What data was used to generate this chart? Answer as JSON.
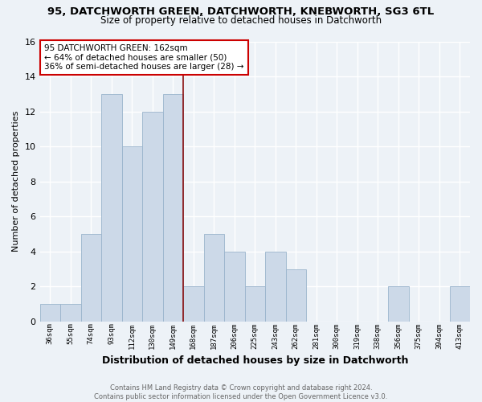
{
  "title1": "95, DATCHWORTH GREEN, DATCHWORTH, KNEBWORTH, SG3 6TL",
  "title2": "Size of property relative to detached houses in Datchworth",
  "xlabel": "Distribution of detached houses by size in Datchworth",
  "ylabel": "Number of detached properties",
  "categories": [
    "36sqm",
    "55sqm",
    "74sqm",
    "93sqm",
    "112sqm",
    "130sqm",
    "149sqm",
    "168sqm",
    "187sqm",
    "206sqm",
    "225sqm",
    "243sqm",
    "262sqm",
    "281sqm",
    "300sqm",
    "319sqm",
    "338sqm",
    "356sqm",
    "375sqm",
    "394sqm",
    "413sqm"
  ],
  "values": [
    1,
    1,
    5,
    13,
    10,
    12,
    13,
    2,
    5,
    4,
    2,
    4,
    3,
    0,
    0,
    0,
    0,
    2,
    0,
    0,
    2
  ],
  "bar_color": "#ccd9e8",
  "bar_edgecolor": "#9ab4cc",
  "bar_linewidth": 0.6,
  "vline_x_idx": 6.5,
  "vline_color": "#8b1010",
  "vline_linewidth": 1.2,
  "annotation_text": "95 DATCHWORTH GREEN: 162sqm\n← 64% of detached houses are smaller (50)\n36% of semi-detached houses are larger (28) →",
  "annotation_box_edgecolor": "#cc0000",
  "annotation_box_facecolor": "#ffffff",
  "annotation_fontsize": 7.5,
  "ylim": [
    0,
    16
  ],
  "yticks": [
    0,
    2,
    4,
    6,
    8,
    10,
    12,
    14,
    16
  ],
  "footnote": "Contains HM Land Registry data © Crown copyright and database right 2024.\nContains public sector information licensed under the Open Government Licence v3.0.",
  "bg_color": "#edf2f7",
  "plot_bg_color": "#edf2f7",
  "grid_color": "#ffffff",
  "title1_fontsize": 9.5,
  "title2_fontsize": 8.5,
  "xlabel_fontsize": 9,
  "ylabel_fontsize": 8,
  "footnote_fontsize": 6,
  "footnote_color": "#666666"
}
